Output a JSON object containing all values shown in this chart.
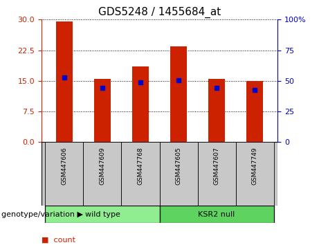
{
  "title": "GDS5248 / 1455684_at",
  "samples": [
    "GSM447606",
    "GSM447609",
    "GSM447768",
    "GSM447605",
    "GSM447607",
    "GSM447749"
  ],
  "count_values": [
    29.5,
    15.5,
    18.5,
    23.5,
    15.5,
    15.0
  ],
  "percentile_left_axis": [
    15.8,
    13.2,
    14.7,
    15.1,
    13.2,
    12.8
  ],
  "left_yticks": [
    0,
    7.5,
    15,
    22.5,
    30
  ],
  "right_yticks": [
    0,
    25,
    50,
    75,
    100
  ],
  "ylim_left": [
    0,
    30
  ],
  "ylim_right": [
    0,
    100
  ],
  "bar_color": "#CC2200",
  "marker_color": "#0000CC",
  "bar_width": 0.45,
  "background_color": "#ffffff",
  "tick_area_color": "#c8c8c8",
  "group_color_wt": "#90EE90",
  "group_color_ksr2": "#5FD35F",
  "title_fontsize": 11,
  "axis_fontsize": 8,
  "legend_fontsize": 8,
  "label_fontsize": 8
}
